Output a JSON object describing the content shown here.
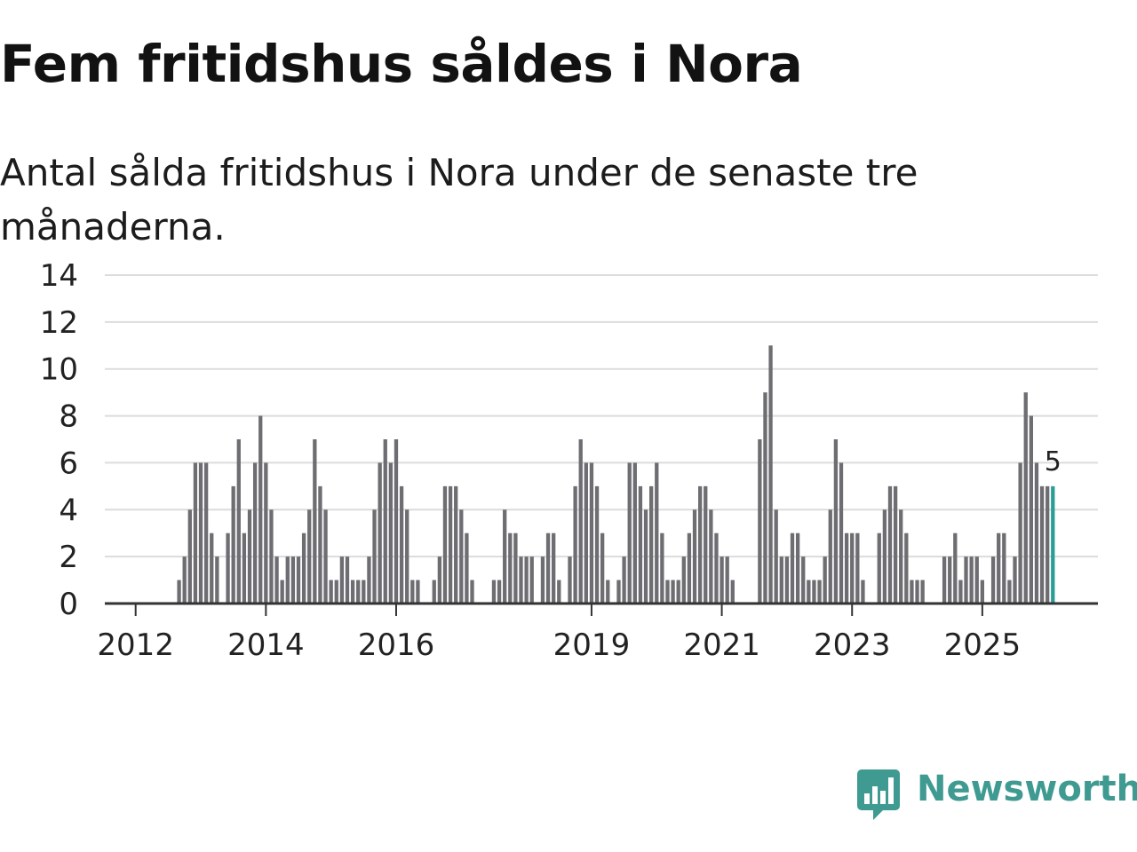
{
  "title": "Fem fritidshus såldes i Nora",
  "subtitle": "Antal sålda fritidshus i Nora under de senaste tre månaderna.",
  "logo": {
    "text": "Newsworthy",
    "icon": "newsworthy-chart-bubble-icon"
  },
  "colors": {
    "bar": "#6d6d72",
    "highlight": "#2a9d96",
    "grid": "#dcdcdc",
    "axis": "#333333",
    "text": "#222222",
    "brand": "#3f9a92"
  },
  "chart_data": {
    "type": "bar",
    "title": "Fem fritidshus såldes i Nora",
    "subtitle": "Antal sålda fritidshus i Nora under de senaste tre månaderna.",
    "xlabel": "",
    "ylabel": "",
    "ylim": [
      0,
      14
    ],
    "yticks": [
      0,
      2,
      4,
      6,
      8,
      10,
      12,
      14
    ],
    "grid": true,
    "x_period": "month",
    "x_start": "2011-08",
    "x_tick_labels": [
      {
        "label": "2012",
        "index": 5
      },
      {
        "label": "2014",
        "index": 29
      },
      {
        "label": "2016",
        "index": 53
      },
      {
        "label": "2019",
        "index": 89
      },
      {
        "label": "2021",
        "index": 113
      },
      {
        "label": "2023",
        "index": 137
      },
      {
        "label": "2025",
        "index": 161
      }
    ],
    "values": [
      0,
      0,
      0,
      0,
      0,
      0,
      0,
      0,
      0,
      0,
      0,
      0,
      0,
      1,
      2,
      4,
      6,
      6,
      6,
      3,
      2,
      0,
      3,
      5,
      7,
      3,
      4,
      6,
      8,
      6,
      4,
      2,
      1,
      2,
      2,
      2,
      3,
      4,
      7,
      5,
      4,
      1,
      1,
      2,
      2,
      1,
      1,
      1,
      2,
      4,
      6,
      7,
      6,
      7,
      5,
      4,
      1,
      1,
      0,
      0,
      1,
      2,
      5,
      5,
      5,
      4,
      3,
      1,
      0,
      0,
      0,
      1,
      1,
      4,
      3,
      3,
      2,
      2,
      2,
      0,
      2,
      3,
      3,
      1,
      0,
      2,
      5,
      7,
      6,
      6,
      5,
      3,
      1,
      0,
      1,
      2,
      6,
      6,
      5,
      4,
      5,
      6,
      3,
      1,
      1,
      1,
      2,
      3,
      4,
      5,
      5,
      4,
      3,
      2,
      2,
      1,
      0,
      0,
      0,
      0,
      7,
      9,
      11,
      4,
      2,
      2,
      3,
      3,
      2,
      1,
      1,
      1,
      2,
      4,
      7,
      6,
      3,
      3,
      3,
      1,
      0,
      0,
      3,
      4,
      5,
      5,
      4,
      3,
      1,
      1,
      1,
      0,
      0,
      0,
      2,
      2,
      3,
      1,
      2,
      2,
      2,
      1,
      0,
      2,
      3,
      3,
      1,
      2,
      6,
      9,
      8,
      6,
      5,
      5,
      5
    ],
    "highlight_last": true,
    "last_value_label": "5"
  }
}
